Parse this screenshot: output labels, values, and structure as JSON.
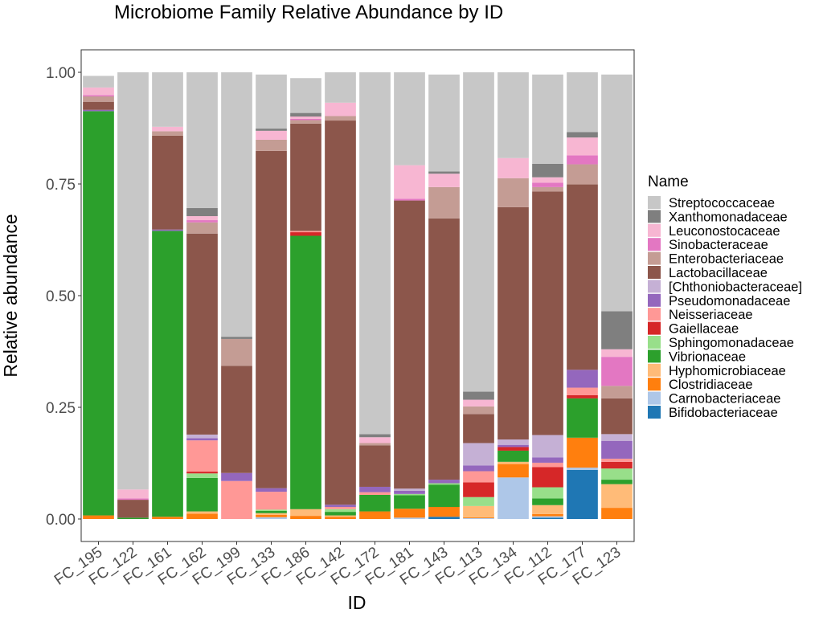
{
  "chart_data": {
    "type": "bar",
    "stacked": true,
    "title": "Microbiome Family Relative Abundance by ID",
    "xlabel": "ID",
    "ylabel": "Relative abundance",
    "ylim": [
      0,
      1
    ],
    "yticks": [
      {
        "value": 0.0,
        "label": "0.00"
      },
      {
        "value": 0.25,
        "label": "0.25"
      },
      {
        "value": 0.5,
        "label": "0.50"
      },
      {
        "value": 0.75,
        "label": "0.75"
      },
      {
        "value": 1.0,
        "label": "1.00"
      }
    ],
    "grid": false,
    "legend": {
      "title": "Name",
      "placement": "right"
    },
    "categories": [
      "FC_195",
      "FC_122",
      "FC_161",
      "FC_162",
      "FC_199",
      "FC_133",
      "FC_186",
      "FC_142",
      "FC_172",
      "FC_181",
      "FC_143",
      "FC_113",
      "FC_134",
      "FC_112",
      "FC_177",
      "FC_123"
    ],
    "series": [
      {
        "name": "Bifidobacteriaceae",
        "color": "#1f77b4",
        "values": [
          0,
          0,
          0,
          0,
          0,
          0,
          0,
          0,
          0,
          0,
          0.005,
          0,
          0,
          0.003,
          0.11,
          0
        ]
      },
      {
        "name": "Carnobacteriaceae",
        "color": "#aec7e8",
        "values": [
          0,
          0,
          0,
          0,
          0,
          0.004,
          0,
          0,
          0,
          0.003,
          0,
          0.002,
          0.093,
          0.003,
          0.005,
          0
        ]
      },
      {
        "name": "Clostridiaceae",
        "color": "#ff7f0e",
        "values": [
          0.008,
          0,
          0.005,
          0.012,
          0,
          0.005,
          0.007,
          0.005,
          0.017,
          0.02,
          0.022,
          0.002,
          0.03,
          0.005,
          0.067,
          0.025
        ]
      },
      {
        "name": "Hyphomicrobiaceae",
        "color": "#ffbb78",
        "values": [
          0,
          0,
          0,
          0.005,
          0,
          0.004,
          0.015,
          0.003,
          0,
          0,
          0,
          0.025,
          0.005,
          0.02,
          0,
          0.053
        ]
      },
      {
        "name": "Vibrionaceae",
        "color": "#2ca02c",
        "values": [
          0.905,
          0.003,
          0.64,
          0.075,
          0,
          0.005,
          0.612,
          0.008,
          0.037,
          0.03,
          0.05,
          0,
          0.025,
          0.015,
          0.088,
          0.01
        ]
      },
      {
        "name": "Sphingomonadaceae",
        "color": "#98df8a",
        "values": [
          0,
          0,
          0,
          0.01,
          0,
          0.003,
          0,
          0.006,
          0,
          0.003,
          0.003,
          0.02,
          0,
          0.025,
          0,
          0.025
        ]
      },
      {
        "name": "Gaiellaceae",
        "color": "#d62728",
        "values": [
          0,
          0,
          0,
          0.004,
          0,
          0,
          0.008,
          0,
          0,
          0,
          0,
          0.033,
          0.008,
          0.045,
          0.007,
          0.015
        ]
      },
      {
        "name": "Neisseriaceae",
        "color": "#ff9896",
        "values": [
          0,
          0,
          0,
          0.07,
          0.085,
          0.04,
          0.003,
          0.005,
          0.006,
          0,
          0,
          0.025,
          0,
          0.01,
          0.017,
          0.007
        ]
      },
      {
        "name": "Pseudomonadaceae",
        "color": "#9467bd",
        "values": [
          0.003,
          0,
          0.003,
          0.005,
          0.018,
          0.008,
          0,
          0.005,
          0.012,
          0.007,
          0.008,
          0.013,
          0.005,
          0.012,
          0.04,
          0.04
        ]
      },
      {
        "name": "[Chthoniobacteraceae]",
        "color": "#c5b0d5",
        "values": [
          0,
          0,
          0,
          0.008,
          0,
          0,
          0,
          0,
          0,
          0.005,
          0,
          0.05,
          0.012,
          0.05,
          0,
          0.015
        ]
      },
      {
        "name": "Lactobacillaceae",
        "color": "#8c564b",
        "values": [
          0.018,
          0.04,
          0.21,
          0.45,
          0.24,
          0.755,
          0.24,
          0.86,
          0.093,
          0.645,
          0.585,
          0.065,
          0.52,
          0.545,
          0.415,
          0.08
        ]
      },
      {
        "name": "Enterobacteriaceae",
        "color": "#c49c94",
        "values": [
          0.012,
          0,
          0.01,
          0.025,
          0.06,
          0.025,
          0.008,
          0.01,
          0.005,
          0,
          0.07,
          0.017,
          0.065,
          0.01,
          0.045,
          0.028
        ]
      },
      {
        "name": "Sinobacteraceae",
        "color": "#e377c2",
        "values": [
          0.003,
          0.003,
          0,
          0.005,
          0,
          0,
          0.003,
          0,
          0,
          0.004,
          0,
          0,
          0,
          0.01,
          0.02,
          0.065
        ]
      },
      {
        "name": "Leuconostocaceae",
        "color": "#f7b6d2",
        "values": [
          0.017,
          0.02,
          0.01,
          0.009,
          0,
          0.02,
          0.005,
          0.03,
          0.013,
          0.075,
          0.03,
          0.015,
          0.045,
          0.012,
          0.04,
          0.017
        ]
      },
      {
        "name": "Xanthomonadaceae",
        "color": "#7f7f7f",
        "values": [
          0,
          0,
          0,
          0.018,
          0.005,
          0.005,
          0.008,
          0,
          0.007,
          0,
          0.005,
          0.018,
          0,
          0.03,
          0.012,
          0.085
        ]
      },
      {
        "name": "Streptococcaceae",
        "color": "#c7c7c7",
        "values": [
          0.026,
          0.934,
          0.122,
          0.304,
          0.592,
          0.121,
          0.078,
          0.068,
          0.81,
          0.208,
          0.217,
          0.715,
          0.192,
          0.2,
          0.134,
          0.53
        ]
      }
    ]
  }
}
